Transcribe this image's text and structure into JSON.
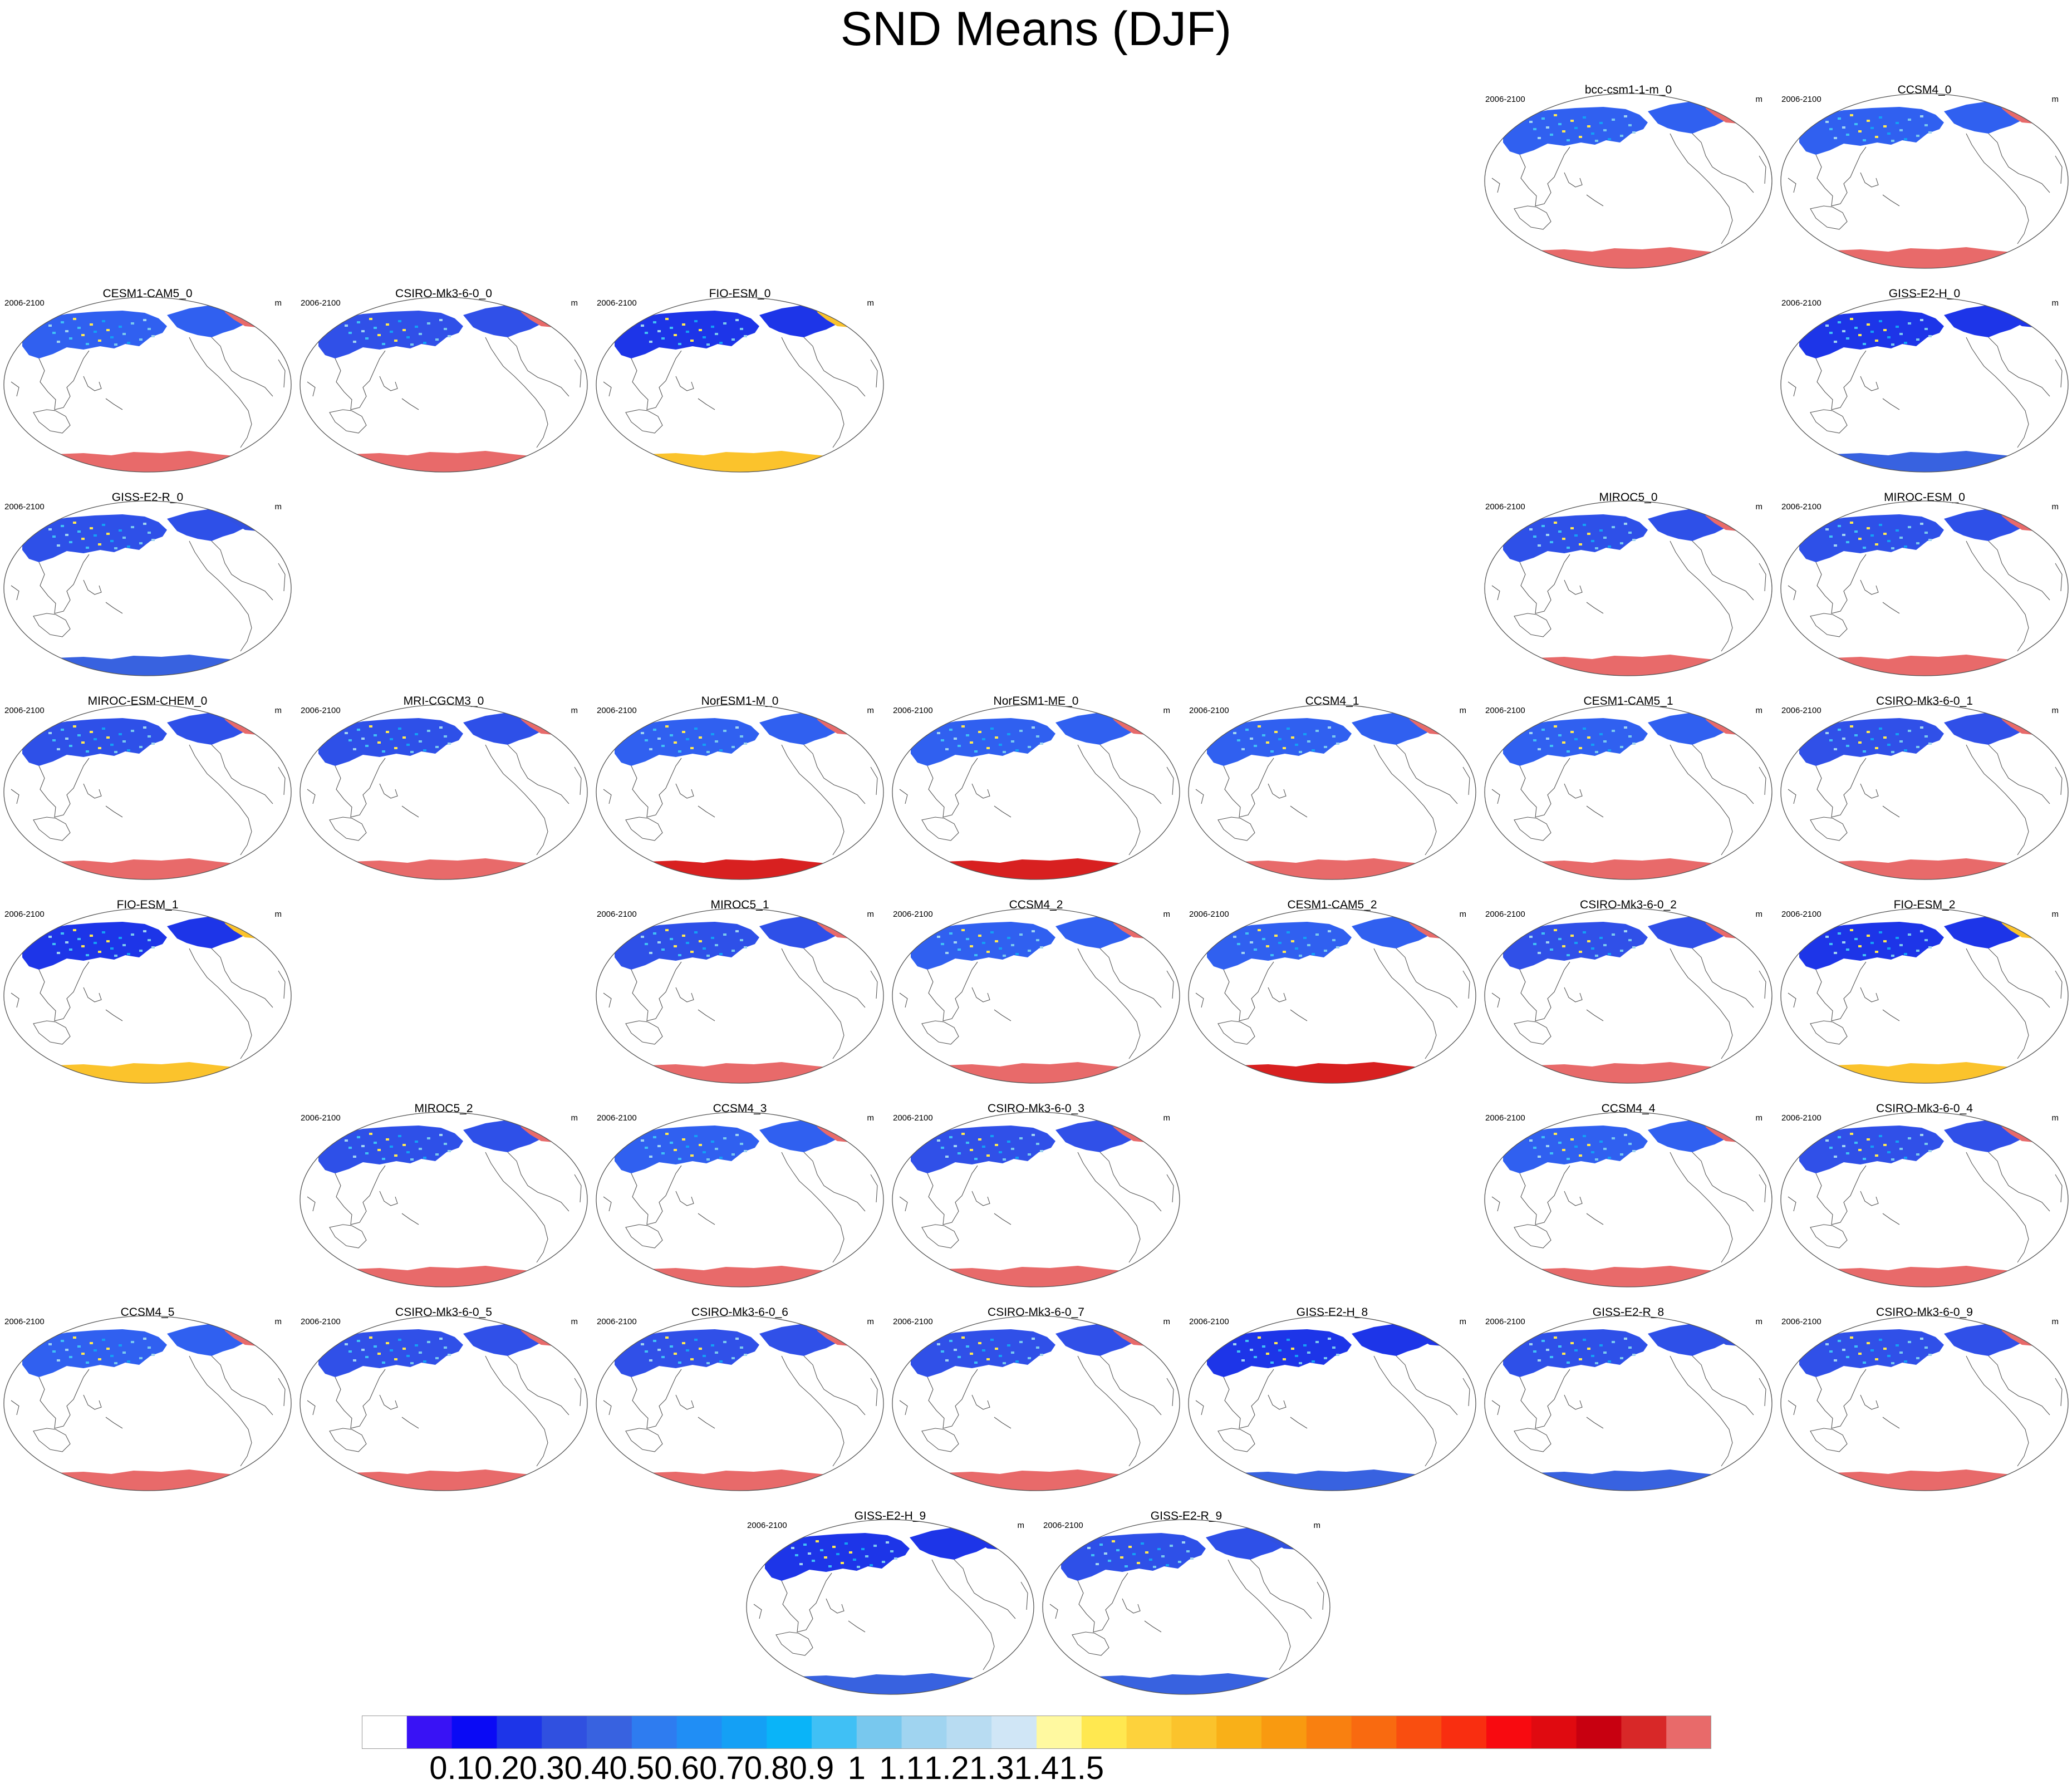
{
  "figure": {
    "title": "SND Means (DJF)",
    "period_label": "2006-2100",
    "units_label": "m"
  },
  "colorbar": {
    "colors": [
      "#ffffff",
      "#3912f5",
      "#0a0af5",
      "#1d35e8",
      "#3050e0",
      "#3862e0",
      "#2e7cf0",
      "#208ef5",
      "#14a0f5",
      "#0ab4f8",
      "#40c0f5",
      "#78c8ee",
      "#a0d4f0",
      "#b8dcf2",
      "#d0e6f6",
      "#fff9a0",
      "#ffe850",
      "#fdd23c",
      "#fbc32c",
      "#f9b018",
      "#f99a10",
      "#f98010",
      "#f96a10",
      "#f94e10",
      "#f92e10",
      "#f80a10",
      "#e00a10",
      "#c80010",
      "#d82828",
      "#e86a6a"
    ],
    "tick_labels": [
      "0.1",
      "0.2",
      "0.3",
      "0.4",
      "0.5",
      "0.6",
      "0.7",
      "0.8",
      "0.9",
      "1",
      "1.1",
      "1.2",
      "1.3",
      "1.4",
      "1.5"
    ]
  },
  "panels": [
    {
      "title": "bcc-csm1-1-m_0",
      "ne_fill": "#e86a6a",
      "ant_fill": "#e86a6a",
      "nh_fill": "#3060f0"
    },
    {
      "title": "CCSM4_0",
      "ne_fill": "#e86a6a",
      "ant_fill": "#e86a6a",
      "nh_fill": "#3060f0"
    },
    {
      "title": "CESM1-CAM5_0",
      "ne_fill": "#e86a6a",
      "ant_fill": "#e86a6a",
      "nh_fill": "#3060f0"
    },
    {
      "title": "CSIRO-Mk3-6-0_0",
      "ne_fill": "#e86a6a",
      "ant_fill": "#e86a6a",
      "nh_fill": "#3050e8"
    },
    {
      "title": "FIO-ESM_0",
      "ne_fill": "#fbc32c",
      "ant_fill": "#fbc32c",
      "nh_fill": "#1d35e8"
    },
    {
      "title": "GISS-E2-H_0",
      "ne_fill": "#1d35e8",
      "ant_fill": "#3862e0",
      "nh_fill": "#1d35e8"
    },
    {
      "title": "GISS-E2-R_0",
      "ne_fill": "#3050e0",
      "ant_fill": "#3862e0",
      "nh_fill": "#2e50e8"
    },
    {
      "title": "MIROC5_0",
      "ne_fill": "#e86a6a",
      "ant_fill": "#e86a6a",
      "nh_fill": "#2e50e8"
    },
    {
      "title": "MIROC-ESM_0",
      "ne_fill": "#e86a6a",
      "ant_fill": "#e86a6a",
      "nh_fill": "#2e50e8"
    },
    {
      "title": "MIROC-ESM-CHEM_0",
      "ne_fill": "#e86a6a",
      "ant_fill": "#e86a6a",
      "nh_fill": "#2e50e8"
    },
    {
      "title": "MRI-CGCM3_0",
      "ne_fill": "#e86a6a",
      "ant_fill": "#e86a6a",
      "nh_fill": "#2e50e8"
    },
    {
      "title": "NorESM1-M_0",
      "ne_fill": "#e86a6a",
      "ant_fill": "#d82020",
      "nh_fill": "#3060f0"
    },
    {
      "title": "NorESM1-ME_0",
      "ne_fill": "#e86a6a",
      "ant_fill": "#d82020",
      "nh_fill": "#3060f0"
    },
    {
      "title": "CCSM4_1",
      "ne_fill": "#e86a6a",
      "ant_fill": "#e86a6a",
      "nh_fill": "#3060f0"
    },
    {
      "title": "CESM1-CAM5_1",
      "ne_fill": "#e86a6a",
      "ant_fill": "#e86a6a",
      "nh_fill": "#3060f0"
    },
    {
      "title": "CSIRO-Mk3-6-0_1",
      "ne_fill": "#e86a6a",
      "ant_fill": "#e86a6a",
      "nh_fill": "#3050e8"
    },
    {
      "title": "FIO-ESM_1",
      "ne_fill": "#fbc32c",
      "ant_fill": "#fbc32c",
      "nh_fill": "#1d35e8"
    },
    {
      "title": "MIROC5_1",
      "ne_fill": "#e86a6a",
      "ant_fill": "#e86a6a",
      "nh_fill": "#2e50e8"
    },
    {
      "title": "CCSM4_2",
      "ne_fill": "#e86a6a",
      "ant_fill": "#e86a6a",
      "nh_fill": "#3060f0"
    },
    {
      "title": "CESM1-CAM5_2",
      "ne_fill": "#e86a6a",
      "ant_fill": "#d82020",
      "nh_fill": "#3060f0"
    },
    {
      "title": "CSIRO-Mk3-6-0_2",
      "ne_fill": "#e86a6a",
      "ant_fill": "#e86a6a",
      "nh_fill": "#3050e8"
    },
    {
      "title": "FIO-ESM_2",
      "ne_fill": "#fbc32c",
      "ant_fill": "#fbc32c",
      "nh_fill": "#1d35e8"
    },
    {
      "title": "MIROC5_2",
      "ne_fill": "#e86a6a",
      "ant_fill": "#e86a6a",
      "nh_fill": "#2e50e8"
    },
    {
      "title": "CCSM4_3",
      "ne_fill": "#e86a6a",
      "ant_fill": "#e86a6a",
      "nh_fill": "#3060f0"
    },
    {
      "title": "CSIRO-Mk3-6-0_3",
      "ne_fill": "#e86a6a",
      "ant_fill": "#e86a6a",
      "nh_fill": "#3050e8"
    },
    {
      "title": "CCSM4_4",
      "ne_fill": "#e86a6a",
      "ant_fill": "#e86a6a",
      "nh_fill": "#3060f0"
    },
    {
      "title": "CSIRO-Mk3-6-0_4",
      "ne_fill": "#e86a6a",
      "ant_fill": "#e86a6a",
      "nh_fill": "#3050e8"
    },
    {
      "title": "CCSM4_5",
      "ne_fill": "#e86a6a",
      "ant_fill": "#e86a6a",
      "nh_fill": "#3060f0"
    },
    {
      "title": "CSIRO-Mk3-6-0_5",
      "ne_fill": "#e86a6a",
      "ant_fill": "#e86a6a",
      "nh_fill": "#3050e8"
    },
    {
      "title": "CSIRO-Mk3-6-0_6",
      "ne_fill": "#e86a6a",
      "ant_fill": "#e86a6a",
      "nh_fill": "#3050e8"
    },
    {
      "title": "CSIRO-Mk3-6-0_7",
      "ne_fill": "#e86a6a",
      "ant_fill": "#e86a6a",
      "nh_fill": "#3050e8"
    },
    {
      "title": "GISS-E2-H_8",
      "ne_fill": "#1d35e8",
      "ant_fill": "#3862e0",
      "nh_fill": "#1d35e8"
    },
    {
      "title": "GISS-E2-R_8",
      "ne_fill": "#3050e0",
      "ant_fill": "#3862e0",
      "nh_fill": "#2e50e8"
    },
    {
      "title": "CSIRO-Mk3-6-0_9",
      "ne_fill": "#e86a6a",
      "ant_fill": "#e86a6a",
      "nh_fill": "#3050e8"
    },
    {
      "title": "GISS-E2-H_9",
      "ne_fill": "#1d35e8",
      "ant_fill": "#3862e0",
      "nh_fill": "#1d35e8"
    },
    {
      "title": "GISS-E2-R_9",
      "ne_fill": "#3050e0",
      "ant_fill": "#3862e0",
      "nh_fill": "#2e50e8"
    }
  ]
}
